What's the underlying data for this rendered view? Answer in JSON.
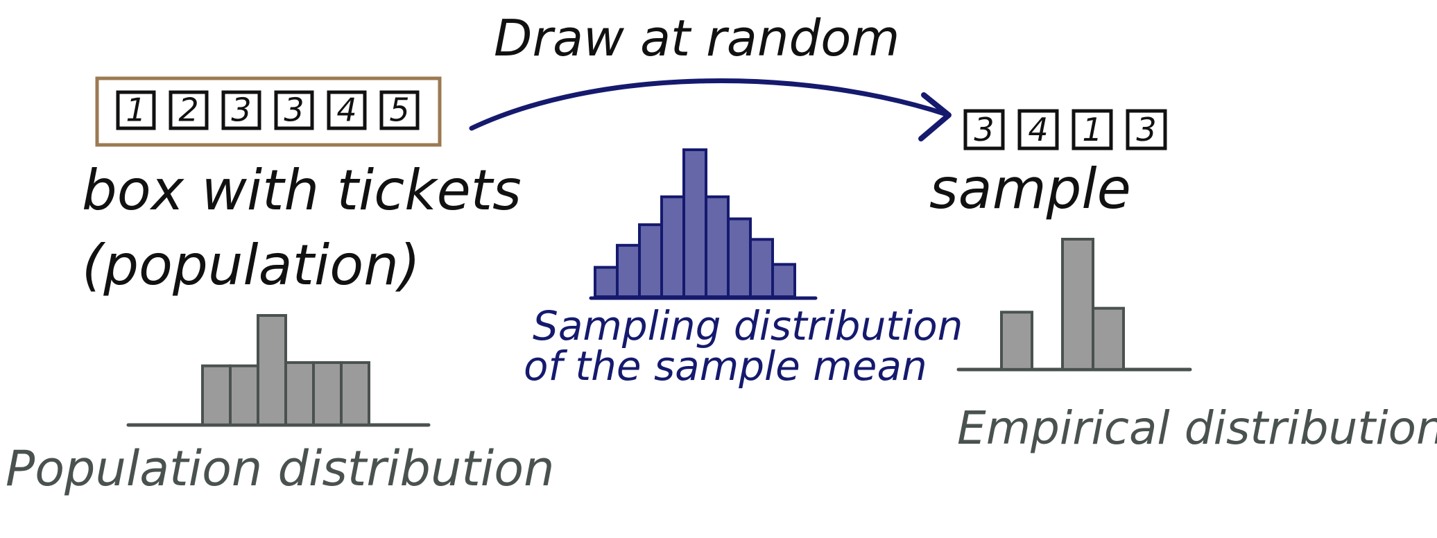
{
  "colors": {
    "ink": "#111111",
    "navy": "#151a6e",
    "bar_navy": "#4a4c9a",
    "gray": "#4a5250",
    "bar_gray": "#8a8a8a",
    "box_border": "#9c7a52"
  },
  "arrow_label": "Draw at random",
  "population": {
    "tickets": [
      "1",
      "2",
      "3",
      "3",
      "4",
      "5"
    ],
    "label_line1": "box with tickets",
    "label_line2": "(population)",
    "hist_label": "Population distribution",
    "hist_heights": [
      0.54,
      0.54,
      1.0,
      0.57,
      0.57,
      0.57
    ]
  },
  "sampling": {
    "label_line1": "Sampling distribution",
    "label_line2": "of the sample mean",
    "hist_heights": [
      0.2,
      0.35,
      0.49,
      0.68,
      1.0,
      0.68,
      0.53,
      0.39,
      0.22
    ]
  },
  "sample": {
    "tickets": [
      "3",
      "4",
      "1",
      "3"
    ],
    "label": "sample",
    "hist_label": "Empirical distribution",
    "hist_heights": [
      0.44,
      0,
      1.0,
      0.47
    ]
  }
}
